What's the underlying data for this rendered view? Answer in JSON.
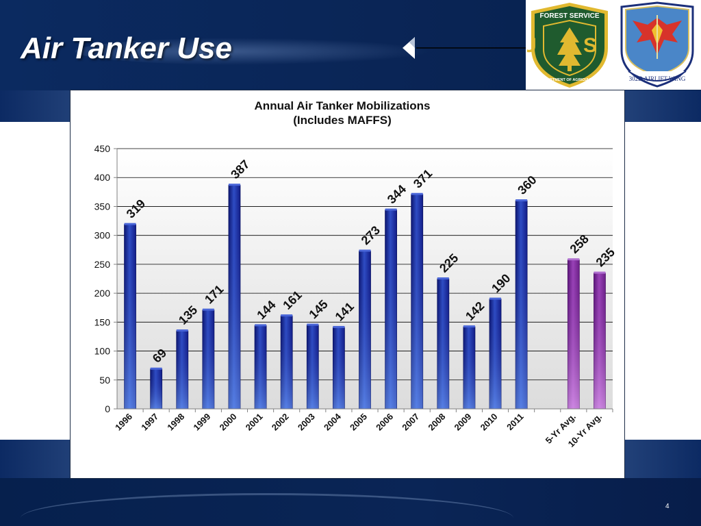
{
  "slide": {
    "title": "Air Tanker Use",
    "page_number": "4"
  },
  "logos": {
    "forest_service": {
      "top_text": "FOREST SERVICE",
      "center_text": "U S",
      "bottom_text": "DEPARTMENT OF AGRICULTURE",
      "colors": {
        "outer": "#1f5b2e",
        "ring": "#e1b930",
        "tree": "#e1b930"
      }
    },
    "airlift_wing": {
      "text": "302D AIRLIFT WING",
      "colors": {
        "ring": "#1b2f7a",
        "inner": "#4a86c8",
        "eagle": "#d7332a"
      }
    }
  },
  "chart_data": {
    "type": "bar",
    "title": "Annual Air Tanker Mobilizations",
    "subtitle": "(Includes MAFFS)",
    "xlabel": "",
    "ylabel": "",
    "ylim": [
      0,
      450
    ],
    "yticks": [
      0,
      50,
      100,
      150,
      200,
      250,
      300,
      350,
      400,
      450
    ],
    "grid": true,
    "legend": false,
    "categories": [
      "1996",
      "1997",
      "1998",
      "1999",
      "2000",
      "2001",
      "2002",
      "2003",
      "2004",
      "2005",
      "2006",
      "2007",
      "2008",
      "2009",
      "2010",
      "2011",
      "",
      "5-Yr Avg.",
      "10-Yr Avg."
    ],
    "values": [
      319,
      69,
      135,
      171,
      387,
      144,
      161,
      145,
      141,
      273,
      344,
      371,
      225,
      142,
      190,
      360,
      null,
      258,
      235
    ],
    "data_labels": [
      "319",
      "69",
      "135",
      "171",
      "387",
      "144",
      "161",
      "145",
      "141",
      "273",
      "344",
      "371",
      "225",
      "142",
      "190",
      "360",
      "",
      "258",
      "235"
    ],
    "colors": {
      "annual": "#1b2f9a",
      "average": "#8a2fa6"
    }
  }
}
